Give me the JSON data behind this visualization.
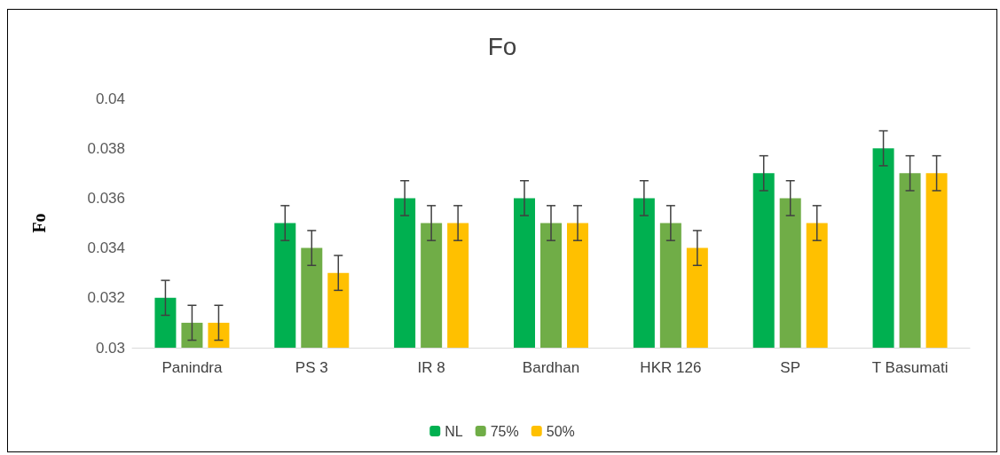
{
  "chart_data": {
    "type": "bar",
    "title": "Fo",
    "ylabel": "Fo",
    "categories": [
      "Panindra",
      "PS 3",
      "IR 8",
      "Bardhan",
      "HKR 126",
      "SP",
      "T Basumati"
    ],
    "series": [
      {
        "name": "NL",
        "color": "#00b050",
        "values": [
          0.032,
          0.035,
          0.036,
          0.036,
          0.036,
          0.037,
          0.038
        ],
        "errors": [
          0.0007,
          0.0007,
          0.0007,
          0.0007,
          0.0007,
          0.0007,
          0.0007
        ]
      },
      {
        "name": "75%",
        "color": "#70ad47",
        "values": [
          0.031,
          0.034,
          0.035,
          0.035,
          0.035,
          0.036,
          0.037
        ],
        "errors": [
          0.0007,
          0.0007,
          0.0007,
          0.0007,
          0.0007,
          0.0007,
          0.0007
        ]
      },
      {
        "name": "50%",
        "color": "#ffc000",
        "values": [
          0.031,
          0.033,
          0.035,
          0.035,
          0.034,
          0.035,
          0.037
        ],
        "errors": [
          0.0007,
          0.0007,
          0.0007,
          0.0007,
          0.0007,
          0.0007,
          0.0007
        ]
      }
    ],
    "ylim": [
      0.03,
      0.04
    ],
    "yticks": [
      0.03,
      0.032,
      0.034,
      0.036,
      0.038,
      0.04
    ],
    "grid": false,
    "legend": "bottom"
  }
}
